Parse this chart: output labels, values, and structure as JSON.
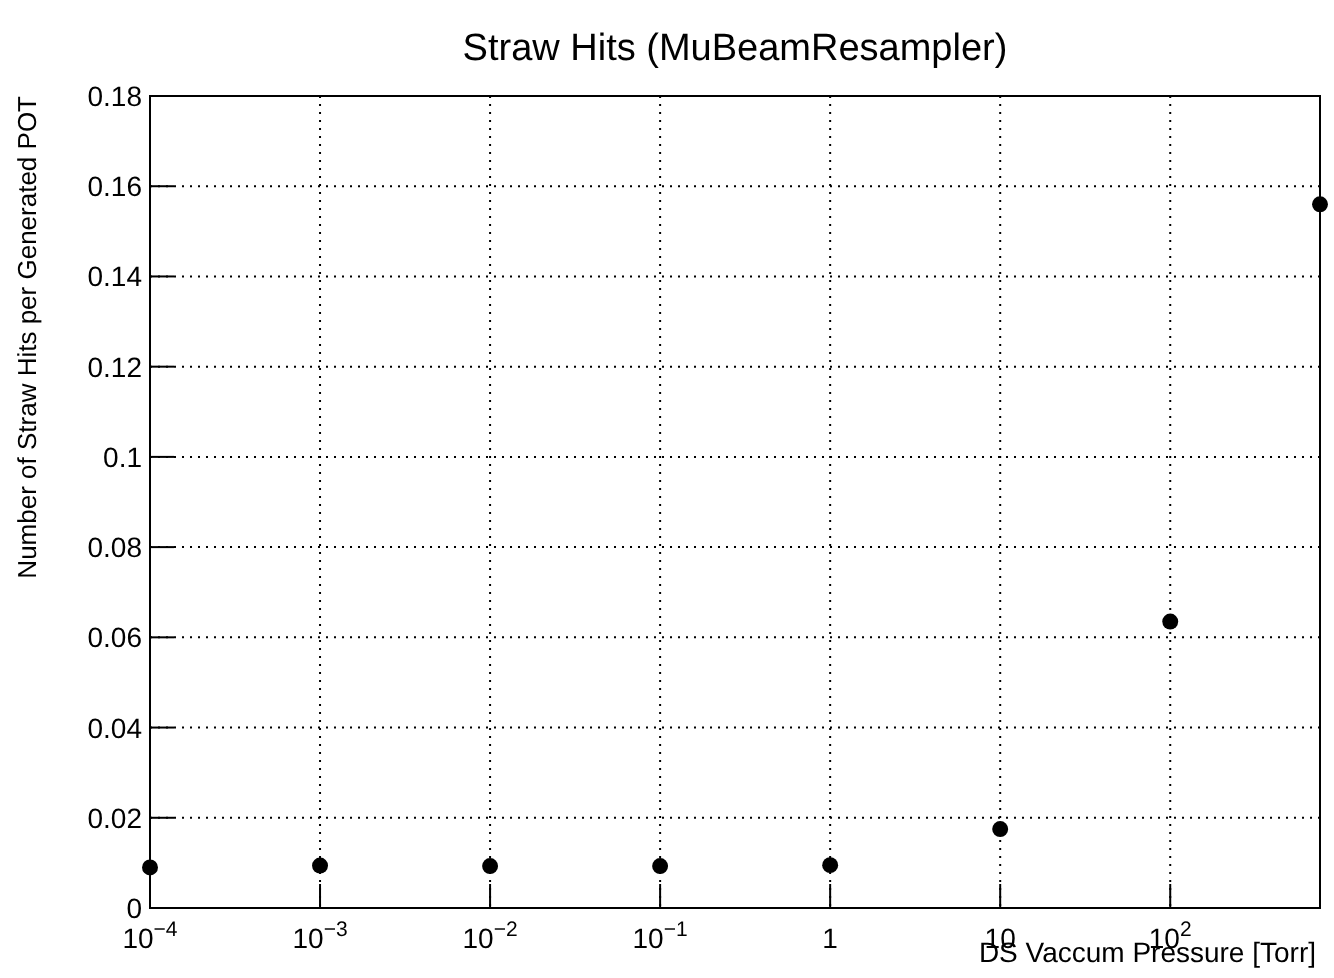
{
  "chart_data": {
    "type": "scatter",
    "title": "Straw Hits (MuBeamResampler)",
    "xlabel": "DS Vaccum Pressure [Torr]",
    "ylabel": "Number of Straw Hits per Generated POT",
    "x": [
      0.0001,
      0.001,
      0.01,
      0.1,
      1,
      10,
      100,
      760
    ],
    "series": [
      {
        "color": "#000000",
        "values": [
          0.009,
          0.0094,
          0.0093,
          0.0093,
          0.0095,
          0.0175,
          0.0635,
          0.156
        ]
      }
    ],
    "log": "x",
    "xlim": [
      0.0001,
      760
    ],
    "xticks": [
      {
        "value": 0.0001,
        "label": "10$^{−4}$"
      },
      {
        "value": 0.001,
        "label": "10$^{−3}$"
      },
      {
        "value": 0.01,
        "label": "10$^{−2}$"
      },
      {
        "value": 0.1,
        "label": "10$^{−1}$"
      },
      1,
      10,
      {
        "value": 100,
        "label": "10$^{2}$"
      }
    ],
    "ylim": [
      0,
      0.18
    ],
    "yticks": [
      0,
      0.02,
      0.04,
      0.06,
      0.08,
      0.1,
      0.12,
      0.14,
      0.16,
      0.18
    ],
    "grid": true,
    "marker": "circle"
  }
}
